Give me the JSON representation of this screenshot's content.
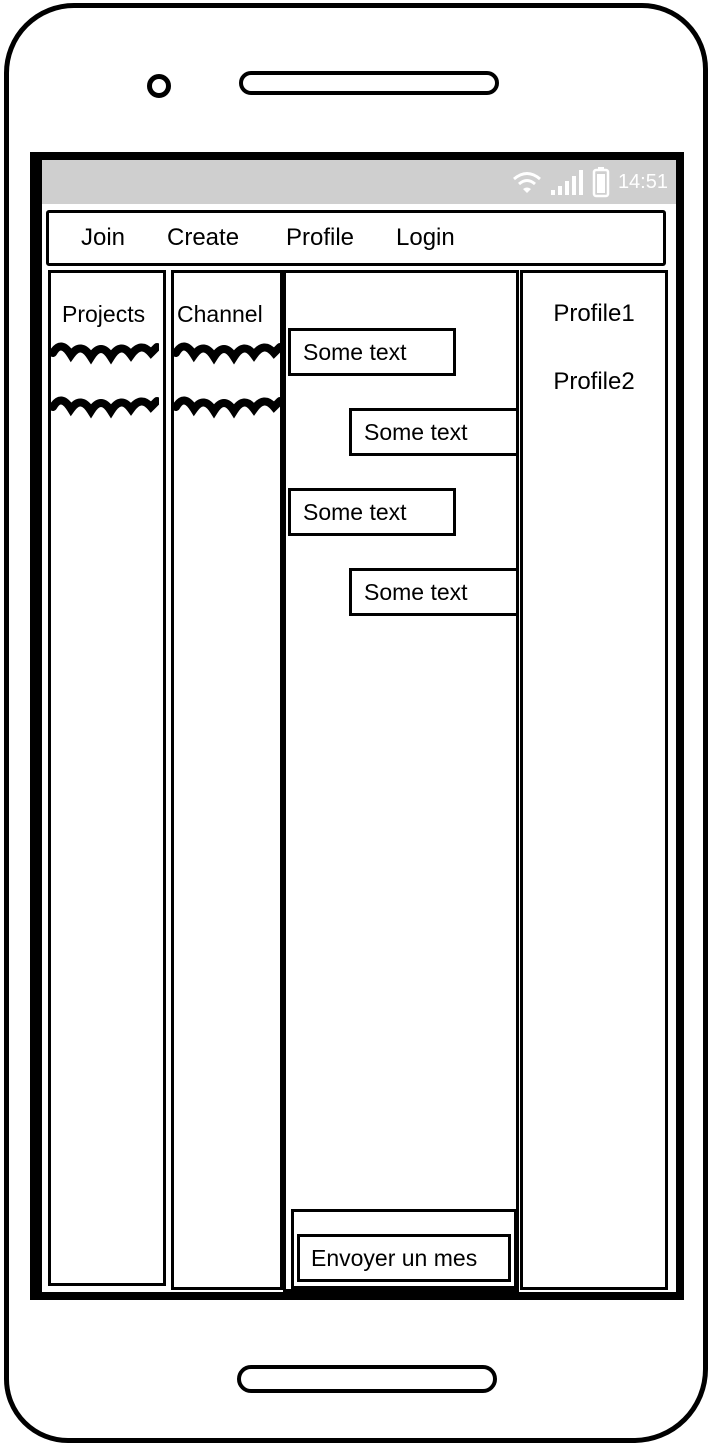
{
  "status_bar": {
    "time": "14:51",
    "icons": [
      "wifi-icon",
      "signal-icon",
      "battery-icon"
    ]
  },
  "navbar": {
    "items": [
      {
        "label": "Join"
      },
      {
        "label": "Create"
      },
      {
        "label": "Profile"
      },
      {
        "label": "Login"
      }
    ]
  },
  "projects_column": {
    "title": "Projects"
  },
  "channel_column": {
    "title": "Channel"
  },
  "chat": {
    "messages": [
      {
        "text": "Some text"
      },
      {
        "text": "Some text"
      },
      {
        "text": "Some text"
      },
      {
        "text": "Some text"
      }
    ],
    "composer_text": "Envoyer un mes"
  },
  "profiles_column": {
    "items": [
      {
        "label": "Profile1"
      },
      {
        "label": "Profile2"
      }
    ]
  },
  "colors": {
    "status_bar_bg": "#cfcfcf",
    "stroke": "#000000",
    "background": "#ffffff"
  }
}
